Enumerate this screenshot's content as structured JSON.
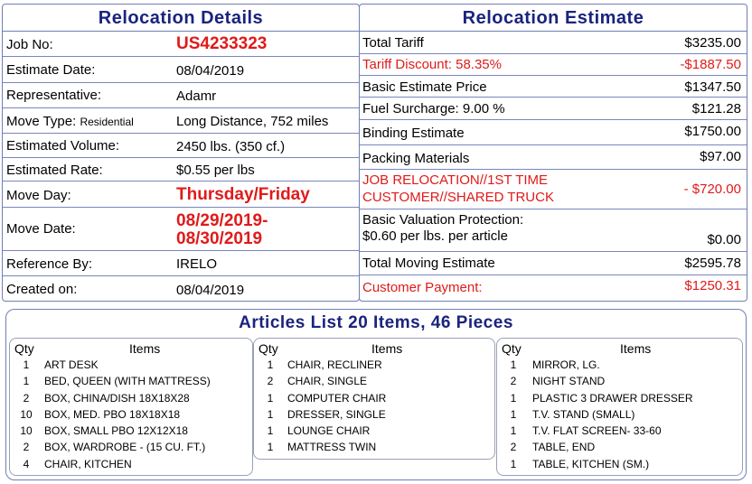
{
  "details": {
    "title": "Relocation Details",
    "job_no_label": "Job No:",
    "job_no": "US4233323",
    "estimate_date_label": "Estimate Date:",
    "estimate_date": "08/04/2019",
    "representative_label": "Representative:",
    "representative": "Adamr",
    "move_type_label": "Move Type:",
    "move_type_kind": "Residential",
    "move_type": "Long Distance, 752 miles",
    "volume_label": "Estimated Volume:",
    "volume": "2450 lbs. (350 cf.)",
    "rate_label": "Estimated Rate:",
    "rate": "$0.55 per lbs",
    "move_day_label": "Move Day:",
    "move_day": "Thursday/Friday",
    "move_date_label": "Move Date:",
    "move_date_line1": "08/29/2019-",
    "move_date_line2": "08/30/2019",
    "reference_label": "Reference By:",
    "reference": "IRELO",
    "created_label": "Created on:",
    "created": "08/04/2019"
  },
  "estimate": {
    "title": "Relocation Estimate",
    "total_tariff_label": "Total Tariff",
    "total_tariff": "$3235.00",
    "tariff_discount_label": "Tariff Discount: 58.35%",
    "tariff_discount": "-$1887.50",
    "basic_price_label": "Basic Estimate Price",
    "basic_price": "$1347.50",
    "fuel_label": "Fuel Surcharge: 9.00 %",
    "fuel": "$121.28",
    "binding_label": "Binding Estimate",
    "binding": "$1750.00",
    "packing_label": "Packing Materials",
    "packing": "$97.00",
    "note_line1": "JOB RELOCATION//1ST TIME",
    "note_line2": "CUSTOMER//SHARED TRUCK",
    "note_amount": "- $720.00",
    "valuation_line1": "Basic Valuation Protection:",
    "valuation_line2": "$0.60 per lbs. per article",
    "valuation": "$0.00",
    "total_moving_label": "Total Moving Estimate",
    "total_moving": "$2595.78",
    "payment_label": "Customer Payment:",
    "payment": "$1250.31"
  },
  "articles": {
    "title": "Articles List 20 Items, 46 Pieces",
    "qty_header": "Qty",
    "items_header": "Items",
    "columns": [
      [
        {
          "qty": "1",
          "name": "ART DESK"
        },
        {
          "qty": "1",
          "name": "BED, QUEEN (WITH MATTRESS)"
        },
        {
          "qty": "2",
          "name": "BOX, CHINA/DISH 18X18X28"
        },
        {
          "qty": "10",
          "name": "BOX, MED. PBO 18X18X18"
        },
        {
          "qty": "10",
          "name": "BOX, SMALL PBO 12X12X18"
        },
        {
          "qty": "2",
          "name": "BOX, WARDROBE - (15 CU. FT.)"
        },
        {
          "qty": "4",
          "name": "CHAIR, KITCHEN"
        }
      ],
      [
        {
          "qty": "1",
          "name": "CHAIR, RECLINER"
        },
        {
          "qty": "2",
          "name": "CHAIR, SINGLE"
        },
        {
          "qty": "1",
          "name": "COMPUTER CHAIR"
        },
        {
          "qty": "1",
          "name": "DRESSER, SINGLE"
        },
        {
          "qty": "1",
          "name": "LOUNGE CHAIR"
        },
        {
          "qty": "1",
          "name": "MATTRESS TWIN"
        }
      ],
      [
        {
          "qty": "1",
          "name": "MIRROR, LG."
        },
        {
          "qty": "2",
          "name": "NIGHT STAND"
        },
        {
          "qty": "1",
          "name": "PLASTIC 3 DRAWER DRESSER"
        },
        {
          "qty": "1",
          "name": "T.V. STAND (SMALL)"
        },
        {
          "qty": "1",
          "name": "T.V. FLAT SCREEN- 33-60"
        },
        {
          "qty": "2",
          "name": "TABLE, END"
        },
        {
          "qty": "1",
          "name": "TABLE, KITCHEN (SM.)"
        }
      ]
    ]
  },
  "colors": {
    "title_navy": "#1a237e",
    "accent_red": "#e01a1a",
    "border": "#6f7fb5"
  }
}
